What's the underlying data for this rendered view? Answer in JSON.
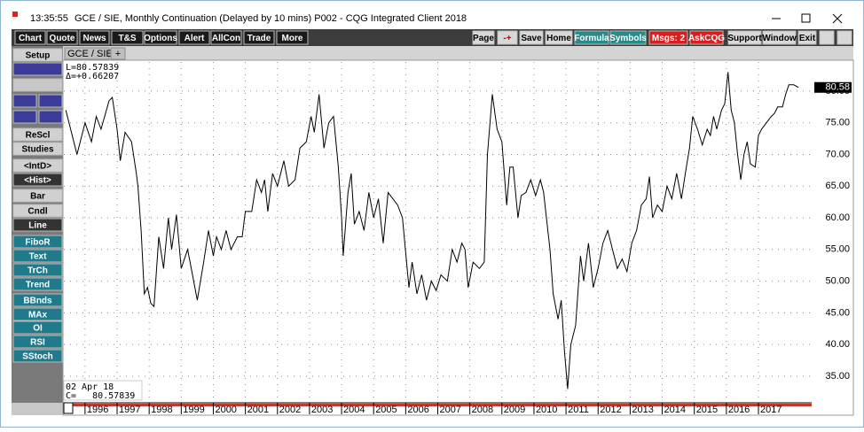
{
  "window": {
    "time": "13:35:55",
    "title": "GCE / SIE, Monthly Continuation (Delayed by 10 mins)  P002 - CQG Integrated Client 2018"
  },
  "toolbar": {
    "left": [
      "Chart",
      "Quote",
      "News",
      "T&S",
      "Options",
      "Alert",
      "AllCon",
      "Trade",
      "More"
    ],
    "right": [
      "Page",
      "-+",
      "Save",
      "Home",
      "Formula",
      "Symbols",
      "Msgs: 2",
      "AskCQG",
      "Support",
      "Window",
      "Exit"
    ]
  },
  "sidebar": [
    "Setup",
    "ReScl",
    "Studies",
    "<IntD>",
    "<Hist>",
    "Bar",
    "Cndl",
    "Line",
    "FiboR",
    "Text",
    "TrCh",
    "Trend",
    "BBnds",
    "MAx",
    "OI",
    "RSI",
    "SStoch"
  ],
  "tab": {
    "label": "GCE / SIE,M",
    "add": "+"
  },
  "chart_data": {
    "type": "line",
    "color": "#000000",
    "annotations": [
      "L=80.57839",
      "Δ=+0.66207"
    ],
    "footer": [
      "02 Apr 18",
      "C=   80.57839"
    ],
    "last_value_label": "80.58",
    "xlim": [
      1995.34,
      2018.66
    ],
    "ylim": [
      30.8,
      84.6
    ],
    "grid": true,
    "xticks": [
      1996,
      1997,
      1998,
      1999,
      2000,
      2001,
      2002,
      2003,
      2004,
      2005,
      2006,
      2007,
      2008,
      2009,
      2010,
      2011,
      2012,
      2013,
      2014,
      2015,
      2016,
      2017
    ],
    "yticks": [
      {
        "value": 35,
        "label": "35.00"
      },
      {
        "value": 40,
        "label": "40.00"
      },
      {
        "value": 45,
        "label": "45.00"
      },
      {
        "value": 50,
        "label": "50.00"
      },
      {
        "value": 55,
        "label": "55.00"
      },
      {
        "value": 60,
        "label": "60.00"
      },
      {
        "value": 65,
        "label": "65.00"
      },
      {
        "value": 70,
        "label": "70.00"
      },
      {
        "value": 75,
        "label": "75.00"
      },
      {
        "value": 80,
        "label": "80.00"
      }
    ],
    "x": [
      1995.4,
      1995.6,
      1995.75,
      1996.0,
      1996.2,
      1996.35,
      1996.5,
      1996.75,
      1996.85,
      1997.0,
      1997.1,
      1997.25,
      1997.45,
      1997.6,
      1997.65,
      1997.75,
      1997.85,
      1997.95,
      1998.05,
      1998.15,
      1998.3,
      1998.45,
      1998.6,
      1998.7,
      1998.85,
      1999.0,
      1999.2,
      1999.35,
      1999.5,
      1999.7,
      1999.85,
      2000.0,
      2000.1,
      2000.25,
      2000.4,
      2000.55,
      2000.75,
      2000.9,
      2001.0,
      2001.2,
      2001.35,
      2001.5,
      2001.6,
      2001.7,
      2001.85,
      2002.0,
      2002.2,
      2002.35,
      2002.55,
      2002.7,
      2002.9,
      2003.05,
      2003.15,
      2003.3,
      2003.45,
      2003.6,
      2003.75,
      2003.9,
      2004.0,
      2004.05,
      2004.2,
      2004.3,
      2004.4,
      2004.55,
      2004.7,
      2004.85,
      2005.0,
      2005.15,
      2005.3,
      2005.45,
      2005.6,
      2005.75,
      2005.9,
      2006.1,
      2006.2,
      2006.35,
      2006.5,
      2006.65,
      2006.8,
      2006.95,
      2007.1,
      2007.3,
      2007.45,
      2007.6,
      2007.75,
      2007.85,
      2007.95,
      2008.1,
      2008.3,
      2008.45,
      2008.55,
      2008.7,
      2008.85,
      2009.0,
      2009.15,
      2009.25,
      2009.35,
      2009.5,
      2009.6,
      2009.75,
      2009.9,
      2010.05,
      2010.2,
      2010.3,
      2010.5,
      2010.6,
      2010.75,
      2010.85,
      2010.95,
      2011.05,
      2011.15,
      2011.3,
      2011.45,
      2011.55,
      2011.7,
      2011.85,
      2012.0,
      2012.15,
      2012.3,
      2012.45,
      2012.6,
      2012.75,
      2012.9,
      2013.05,
      2013.2,
      2013.35,
      2013.5,
      2013.6,
      2013.7,
      2013.85,
      2014.0,
      2014.15,
      2014.3,
      2014.45,
      2014.6,
      2014.75,
      2014.85,
      2014.95,
      2015.1,
      2015.25,
      2015.4,
      2015.5,
      2015.6,
      2015.7,
      2015.85,
      2015.95,
      2016.05,
      2016.15,
      2016.25,
      2016.35,
      2016.45,
      2016.55,
      2016.65,
      2016.75,
      2016.9,
      2017.0,
      2017.1,
      2017.25,
      2017.4,
      2017.5,
      2017.6,
      2017.75,
      2017.85,
      2017.95,
      2018.1,
      2018.25
    ],
    "values": [
      77,
      73,
      70,
      75,
      72,
      76,
      74,
      78.5,
      79,
      74,
      69,
      73.5,
      72,
      67,
      65,
      58,
      48,
      49,
      46.5,
      46,
      57,
      52,
      60,
      55,
      60.5,
      52,
      55,
      51,
      47,
      53,
      58,
      54,
      57,
      55,
      58,
      55,
      57,
      57,
      61,
      61,
      66,
      64,
      66,
      61,
      67,
      65,
      69,
      65,
      66,
      71,
      72,
      76,
      73.5,
      79.5,
      71,
      75,
      76,
      68,
      60,
      54,
      64,
      67,
      59,
      61,
      58,
      64,
      60,
      63,
      56,
      64,
      63,
      62,
      60,
      49,
      53,
      48,
      51,
      47,
      50,
      48.5,
      51,
      50,
      55,
      53,
      56,
      55,
      49,
      53,
      52,
      53,
      70,
      79.5,
      74,
      72,
      62,
      68,
      68,
      60,
      63.5,
      64,
      66,
      63.5,
      66,
      64,
      55,
      48,
      44,
      47,
      39,
      33,
      40,
      43,
      54,
      50,
      56,
      49,
      52,
      56,
      58,
      55,
      52,
      53.5,
      51.5,
      56,
      58,
      62,
      63,
      66.5,
      60,
      62,
      61,
      65,
      63,
      67,
      63,
      68,
      71,
      76,
      74,
      71.5,
      74,
      73,
      76,
      74,
      77,
      78,
      83,
      77,
      75,
      70,
      66,
      70,
      72,
      68.5,
      68,
      73,
      74,
      75,
      76,
      76.5,
      77.5,
      77.5,
      79.5,
      81,
      81,
      80.58
    ]
  }
}
